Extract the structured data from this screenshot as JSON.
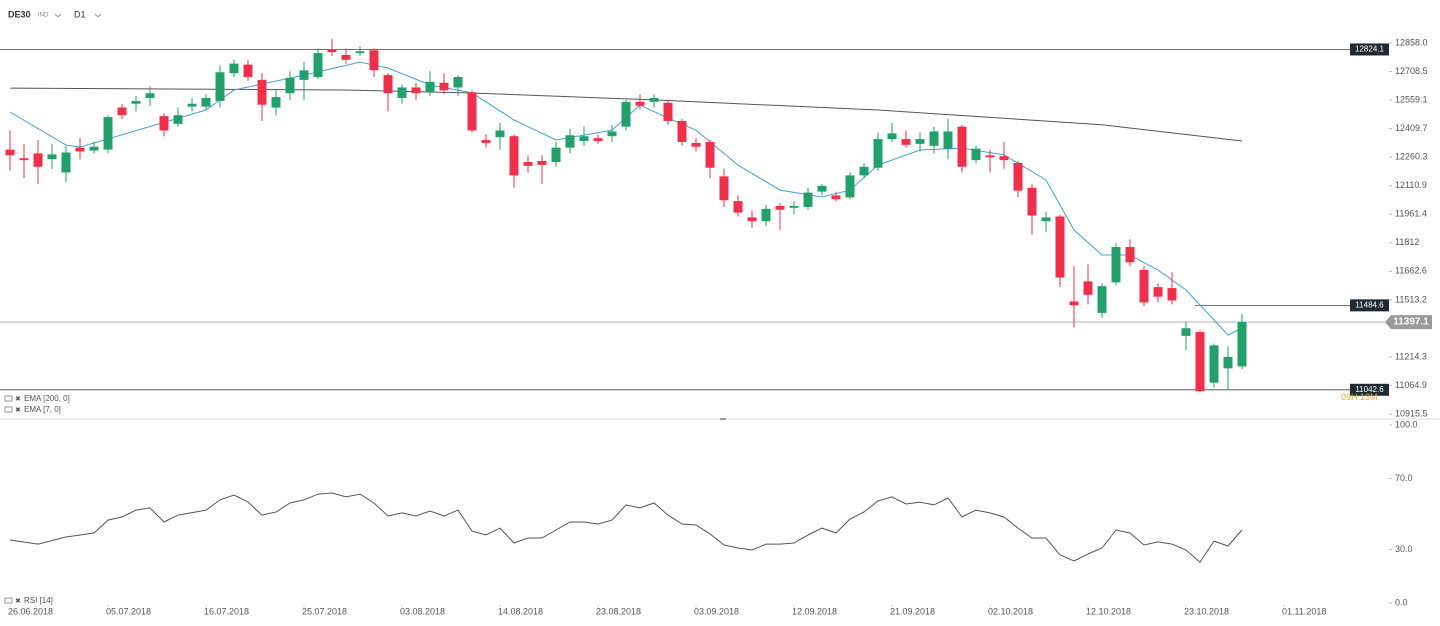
{
  "chart_data": [
    {
      "type": "candlestick",
      "symbol": "DE30",
      "market": "IND",
      "timeframe": "D1",
      "up_color": "#22a06b",
      "down_color": "#f0304a",
      "open": [
        12300,
        12255,
        12280,
        12250,
        12180,
        12310,
        12295,
        12300,
        12520,
        12540,
        12570,
        12475,
        12435,
        12525,
        12525,
        12555,
        12700,
        12745,
        12665,
        12520,
        12595,
        12665,
        12680,
        12822,
        12795,
        12805,
        12820,
        12690,
        12570,
        12625,
        12600,
        12650,
        12625,
        12600,
        12350,
        12365,
        12370,
        12235,
        12240,
        12235,
        12310,
        12345,
        12360,
        12370,
        12420,
        12550,
        12550,
        12545,
        12450,
        12335,
        12340,
        12160,
        12030,
        11945,
        11925,
        12005,
        11995,
        12000,
        12080,
        12060,
        12050,
        12165,
        12205,
        12355,
        12355,
        12330,
        12320,
        12305,
        12420,
        12245,
        12270,
        12265,
        12230,
        12100,
        11925,
        11950,
        11505,
        11610,
        11445,
        11605,
        11790,
        11670,
        11580,
        11575,
        11325,
        11345,
        11080,
        11155,
        11165
      ],
      "high": [
        12400,
        12330,
        12350,
        12330,
        12320,
        12360,
        12340,
        12480,
        12540,
        12580,
        12630,
        12490,
        12520,
        12570,
        12590,
        12740,
        12770,
        12770,
        12700,
        12610,
        12710,
        12760,
        12830,
        12880,
        12830,
        12840,
        12830,
        12700,
        12640,
        12650,
        12710,
        12700,
        12690,
        12610,
        12380,
        12440,
        12380,
        12270,
        12270,
        12340,
        12410,
        12420,
        12380,
        12430,
        12560,
        12590,
        12590,
        12560,
        12460,
        12360,
        12350,
        12200,
        12060,
        11980,
        12010,
        12020,
        12030,
        12100,
        12120,
        12080,
        12180,
        12230,
        12390,
        12440,
        12400,
        12390,
        12420,
        12460,
        12430,
        12320,
        12300,
        12340,
        12240,
        12120,
        11975,
        11960,
        11690,
        11700,
        11600,
        11810,
        11830,
        11690,
        11600,
        11660,
        11400,
        11355,
        11285,
        11270,
        11440
      ],
      "low": [
        12190,
        12150,
        12120,
        12200,
        12130,
        12250,
        12280,
        12280,
        12460,
        12500,
        12530,
        12370,
        12420,
        12500,
        12510,
        12520,
        12680,
        12660,
        12450,
        12480,
        12560,
        12560,
        12670,
        12790,
        12750,
        12790,
        12680,
        12500,
        12540,
        12560,
        12580,
        12590,
        12580,
        12390,
        12310,
        12300,
        12100,
        12180,
        12120,
        12210,
        12280,
        12320,
        12330,
        12340,
        12400,
        12510,
        12520,
        12430,
        12320,
        12290,
        12150,
        12000,
        11950,
        11890,
        11900,
        11880,
        11960,
        11985,
        12060,
        12030,
        12040,
        12150,
        12190,
        12340,
        12310,
        12290,
        12280,
        12250,
        12180,
        12230,
        12180,
        12200,
        12050,
        11855,
        11870,
        11580,
        11370,
        11490,
        11420,
        11590,
        11690,
        11480,
        11500,
        11490,
        11250,
        11030,
        11055,
        11040,
        11150
      ],
      "close": [
        12270,
        12245,
        12210,
        12275,
        12285,
        12290,
        12315,
        12470,
        12480,
        12555,
        12595,
        12400,
        12480,
        12540,
        12570,
        12705,
        12750,
        12680,
        12535,
        12575,
        12675,
        12715,
        12805,
        12810,
        12770,
        12815,
        12715,
        12595,
        12625,
        12595,
        12655,
        12610,
        12680,
        12400,
        12335,
        12400,
        12165,
        12215,
        12220,
        12310,
        12375,
        12370,
        12345,
        12395,
        12550,
        12530,
        12570,
        12450,
        12340,
        12315,
        12205,
        12035,
        11970,
        11925,
        11990,
        11985,
        12005,
        12075,
        12110,
        12040,
        12165,
        12210,
        12355,
        12385,
        12325,
        12355,
        12395,
        12395,
        12210,
        12305,
        12260,
        12245,
        12085,
        11955,
        11945,
        11630,
        11485,
        11540,
        11585,
        11790,
        11710,
        11500,
        11530,
        11510,
        11365,
        11035,
        11275,
        11215,
        11397.1
      ],
      "series": [
        {
          "name": "EMA [200, 0]",
          "color": "#555555",
          "x": [
            0,
            24,
            33,
            46,
            62,
            78,
            88
          ],
          "values": [
            12622,
            12612,
            12596,
            12560,
            12507,
            12430,
            12345
          ]
        },
        {
          "name": "EMA [7, 0]",
          "color": "#4a9fd8",
          "x": [
            0,
            4,
            5,
            14,
            16,
            21,
            25,
            27,
            30,
            33,
            36,
            39,
            43,
            45,
            47,
            49,
            52,
            55,
            58,
            60,
            62,
            65,
            68,
            71,
            74,
            76,
            78,
            80,
            82,
            84,
            86,
            87,
            88
          ],
          "values": [
            12497,
            12324,
            12313,
            12507,
            12612,
            12690,
            12758,
            12727,
            12638,
            12597,
            12455,
            12350,
            12402,
            12533,
            12465,
            12402,
            12219,
            12088,
            12052,
            12088,
            12219,
            12298,
            12308,
            12272,
            12141,
            11879,
            11748,
            11748,
            11669,
            11565,
            11408,
            11329,
            11366
          ]
        }
      ],
      "levels": [
        12824.1,
        11484.6,
        11042.6
      ],
      "current_price": 11397.1,
      "timer": "09H 19M",
      "xlim": [
        -0.5,
        95.5
      ],
      "ylim": [
        10895,
        12926
      ],
      "yticks": [
        {
          "value": 12858,
          "label": "12858.0"
        },
        12708.5,
        12559.1,
        12409.7,
        12260.3,
        12110.9,
        11961.4,
        11812.0,
        11662.6,
        11513.2,
        11214.3,
        11064.9,
        10915.5
      ]
    },
    {
      "type": "line",
      "series": [
        {
          "name": "RSI [14]",
          "color": "#555555",
          "x": [
            0,
            2,
            4,
            6,
            7,
            8,
            9,
            10,
            11,
            12,
            14,
            15,
            16,
            17,
            18,
            19,
            20,
            21,
            22,
            23,
            24,
            25,
            26,
            27,
            28,
            29,
            30,
            31,
            32,
            33,
            34,
            35,
            36,
            37,
            38,
            39,
            40,
            41,
            42,
            43,
            44,
            45,
            46,
            47,
            48,
            49,
            50,
            51,
            52,
            53,
            54,
            55,
            56,
            57,
            58,
            59,
            60,
            61,
            62,
            63,
            64,
            65,
            66,
            67,
            68,
            69,
            70,
            71,
            72,
            73,
            74,
            75,
            76,
            77,
            78,
            79,
            80,
            81,
            82,
            83,
            84,
            85,
            86,
            87,
            88
          ],
          "values": [
            35.4,
            33.1,
            37.1,
            39.3,
            46.6,
            48.3,
            52.2,
            53.4,
            45.5,
            49.4,
            52.2,
            57.9,
            60.7,
            56.7,
            49.4,
            51.1,
            56.2,
            57.9,
            61.2,
            61.8,
            59.6,
            61.2,
            56.2,
            48.9,
            50.6,
            48.9,
            51.7,
            48.9,
            52.2,
            40.4,
            38.2,
            42.1,
            33.7,
            36.5,
            36.5,
            41.0,
            45.5,
            45.5,
            44.4,
            46.6,
            55.1,
            53.4,
            56.2,
            49.4,
            44.4,
            43.8,
            38.8,
            32.6,
            30.9,
            29.8,
            33.1,
            33.1,
            33.7,
            38.2,
            42.1,
            39.3,
            47.2,
            51.1,
            57.3,
            59.6,
            55.6,
            56.7,
            55.1,
            59.0,
            48.3,
            52.2,
            50.6,
            48.3,
            42.1,
            36.5,
            36.5,
            27.0,
            23.6,
            27.5,
            30.9,
            41.0,
            39.3,
            32.6,
            34.3,
            33.1,
            29.8,
            23.0,
            34.8,
            32.0,
            41.0
          ]
        }
      ],
      "xlim": [
        -0.5,
        95.5
      ],
      "ylim": [
        0,
        100
      ],
      "yticks": [
        {
          "value": 100,
          "label": "100.0"
        },
        {
          "value": 70,
          "label": "70.0"
        },
        {
          "value": 30,
          "label": "30.0"
        },
        {
          "value": 0,
          "label": "0.0"
        }
      ],
      "xticks": [
        {
          "value": 0,
          "label": "26.06.2018"
        },
        {
          "value": 7,
          "label": "05.07.2018"
        },
        {
          "value": 14,
          "label": "16.07.2018"
        },
        {
          "value": 21,
          "label": "25.07.2018"
        },
        {
          "value": 28,
          "label": "03.08.2018"
        },
        {
          "value": 35,
          "label": "14.08.2018"
        },
        {
          "value": 42,
          "label": "23.08.2018"
        },
        {
          "value": 49,
          "label": "03.09.2018"
        },
        {
          "value": 56,
          "label": "12.09.2018"
        },
        {
          "value": 63,
          "label": "21.09.2018"
        },
        {
          "value": 70,
          "label": "02.10.2018"
        },
        {
          "value": 77,
          "label": "12.10.2018"
        },
        {
          "value": 84,
          "label": "23.10.2018"
        },
        {
          "value": 91,
          "label": "01.11.2018"
        }
      ]
    }
  ]
}
